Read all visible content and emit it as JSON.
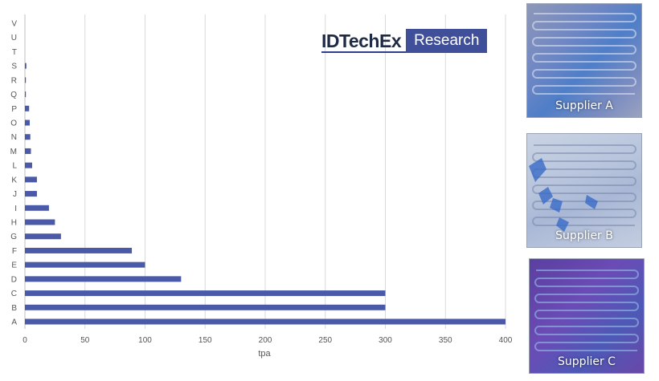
{
  "chart_data": {
    "type": "bar",
    "orientation": "horizontal",
    "categories": [
      "A",
      "B",
      "C",
      "D",
      "E",
      "F",
      "G",
      "H",
      "I",
      "J",
      "K",
      "L",
      "M",
      "N",
      "O",
      "P",
      "Q",
      "R",
      "S",
      "T",
      "U",
      "V"
    ],
    "values": [
      400,
      300,
      300,
      130,
      100,
      89,
      30,
      25,
      20,
      10,
      10,
      6,
      5,
      4.5,
      4,
      3.5,
      0.8,
      0.8,
      1.2,
      0,
      0,
      0
    ],
    "xlabel": "tpa",
    "ylabel": "",
    "xlim": [
      0,
      400
    ],
    "xticks": [
      0,
      50,
      100,
      150,
      200,
      250,
      300,
      350,
      400
    ],
    "grid": "vertical",
    "bar_color": "#4a5aa8",
    "grid_color": "#d9d9d9"
  },
  "logo": {
    "word": "IDTechEx",
    "box": "Research",
    "box_color": "#3f4f9a"
  },
  "photos": [
    {
      "label": "Supplier A"
    },
    {
      "label": "Supplier B"
    },
    {
      "label": "Supplier C"
    }
  ]
}
